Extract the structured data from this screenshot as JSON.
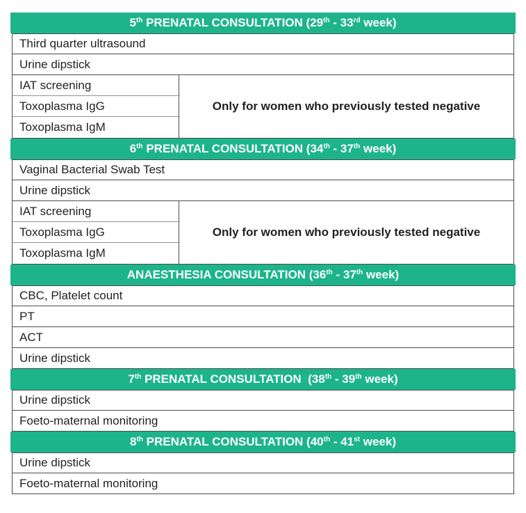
{
  "colors": {
    "header_bg": "#1db48c",
    "header_text": "#ffffff",
    "border_color": "#4c4c4e",
    "subdivider_color": "#8f9194",
    "text_color": "#231f20",
    "page_bg": "#ffffff"
  },
  "table": {
    "rows": [
      {
        "type": "header",
        "parts": [
          {
            "text": "5"
          },
          {
            "text": "th",
            "sup": true
          },
          {
            "text": " PRENATAL CONSULTATION (29"
          },
          {
            "text": "th",
            "sup": true
          },
          {
            "text": " - 33"
          },
          {
            "text": "rd",
            "sup": true
          },
          {
            "text": " week)"
          }
        ]
      },
      {
        "type": "item",
        "label": "Third quarter ultrasound"
      },
      {
        "type": "item",
        "label": "Urine dipstick"
      },
      {
        "type": "group",
        "items": [
          "IAT screening",
          "Toxoplasma IgG",
          "Toxoplasma IgM"
        ],
        "note": "Only for women who previously tested negative"
      },
      {
        "type": "header",
        "parts": [
          {
            "text": "6"
          },
          {
            "text": "th",
            "sup": true
          },
          {
            "text": " PRENATAL CONSULTATION (34"
          },
          {
            "text": "th",
            "sup": true
          },
          {
            "text": " - 37"
          },
          {
            "text": "th",
            "sup": true
          },
          {
            "text": " week)"
          }
        ]
      },
      {
        "type": "item",
        "label": "Vaginal Bacterial Swab Test"
      },
      {
        "type": "item",
        "label": "Urine dipstick"
      },
      {
        "type": "group",
        "items": [
          "IAT screening",
          "Toxoplasma IgG",
          "Toxoplasma IgM"
        ],
        "note": "Only for women who previously tested negative"
      },
      {
        "type": "header",
        "parts": [
          {
            "text": "ANAESTHESIA CONSULTATION (36"
          },
          {
            "text": "th",
            "sup": true
          },
          {
            "text": " - 37"
          },
          {
            "text": "th",
            "sup": true
          },
          {
            "text": " week)"
          }
        ]
      },
      {
        "type": "item",
        "label": "CBC, Platelet count"
      },
      {
        "type": "item",
        "label": "PT"
      },
      {
        "type": "item",
        "label": "ACT"
      },
      {
        "type": "item",
        "label": "Urine dipstick"
      },
      {
        "type": "header",
        "parts": [
          {
            "text": "7"
          },
          {
            "text": "th",
            "sup": true
          },
          {
            "text": " PRENATAL CONSULTATION  (38"
          },
          {
            "text": "th",
            "sup": true
          },
          {
            "text": " - 39"
          },
          {
            "text": "th",
            "sup": true
          },
          {
            "text": " week)"
          }
        ]
      },
      {
        "type": "item",
        "label": "Urine dipstick"
      },
      {
        "type": "item",
        "label": "Foeto-maternal monitoring"
      },
      {
        "type": "header",
        "parts": [
          {
            "text": "8"
          },
          {
            "text": "th",
            "sup": true
          },
          {
            "text": " PRENATAL CONSULTATION (40"
          },
          {
            "text": "th",
            "sup": true
          },
          {
            "text": " - 41"
          },
          {
            "text": "st",
            "sup": true
          },
          {
            "text": " week)"
          }
        ]
      },
      {
        "type": "item",
        "label": "Urine dipstick"
      },
      {
        "type": "item",
        "label": "Foeto-maternal monitoring"
      }
    ]
  }
}
